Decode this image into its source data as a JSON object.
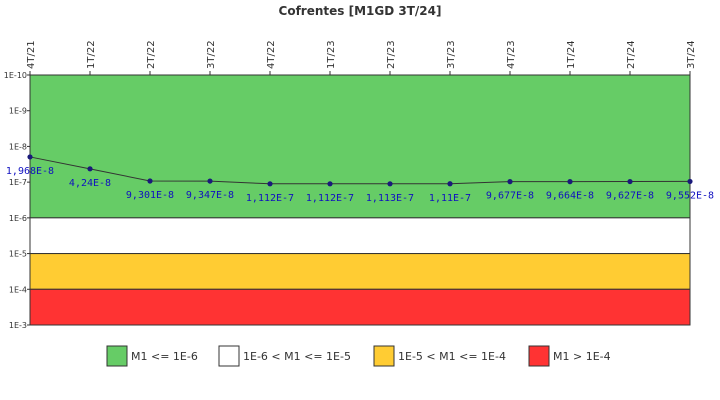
{
  "chart_data": {
    "type": "line",
    "title": "Cofrentes [M1GD 3T/24]",
    "xlabel": "",
    "ylabel": "",
    "scale": "log",
    "y_order": "inverted",
    "ylim": [
      1e-10,
      0.001
    ],
    "y_ticks": [
      "1E-10",
      "1E-9",
      "1E-8",
      "1E-7",
      "1E-6",
      "1E-5",
      "1E-4",
      "1E-3"
    ],
    "categories": [
      "4T/21",
      "1T/22",
      "2T/22",
      "3T/22",
      "4T/22",
      "1T/23",
      "2T/23",
      "3T/23",
      "4T/23",
      "1T/24",
      "2T/24",
      "3T/24"
    ],
    "series": [
      {
        "values": [
          1.968e-08,
          4.24e-08,
          9.301e-08,
          9.347e-08,
          1.112e-07,
          1.112e-07,
          1.113e-07,
          1.11e-07,
          9.677e-08,
          9.664e-08,
          9.627e-08,
          9.552e-08
        ],
        "labels": [
          "1,968E-8",
          "4,24E-8",
          "9,301E-8",
          "9,347E-8",
          "1,112E-7",
          "1,112E-7",
          "1,113E-7",
          "1,11E-7",
          "9,677E-8",
          "9,664E-8",
          "9,627E-8",
          "9,552E-8"
        ],
        "line_color": "#333333",
        "marker_color": "#1a1a7a"
      }
    ],
    "bands": [
      {
        "from": 1e-10,
        "to": 1e-06,
        "color": "#66cc66",
        "legend": "M1 <= 1E-6"
      },
      {
        "from": 1e-06,
        "to": 1e-05,
        "color": "#ffffff",
        "legend": "1E-6 < M1 <= 1E-5"
      },
      {
        "from": 1e-05,
        "to": 0.0001,
        "color": "#ffcc33",
        "legend": "1E-5 < M1 <= 1E-4"
      },
      {
        "from": 0.0001,
        "to": 0.001,
        "color": "#ff3333",
        "legend": "M1 > 1E-4"
      }
    ],
    "legend_position": "bottom",
    "grid": false
  }
}
